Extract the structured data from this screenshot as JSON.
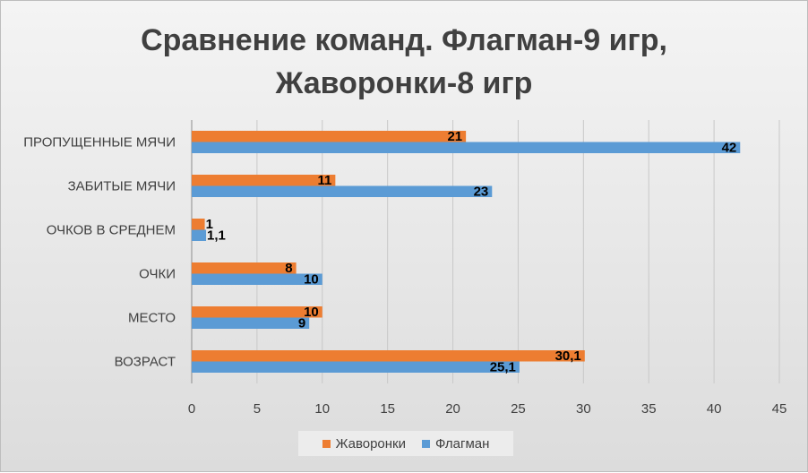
{
  "chart_data": {
    "type": "bar",
    "orientation": "horizontal",
    "title_lines": [
      "Сравнение команд. Флагман-9 игр,",
      "Жаворонки-8 игр"
    ],
    "categories": [
      "ПРОПУЩЕННЫЕ МЯЧИ",
      "ЗАБИТЫЕ МЯЧИ",
      "ОЧКОВ В СРЕДНЕМ",
      "ОЧКИ",
      "МЕСТО",
      "ВОЗРАСТ"
    ],
    "series": [
      {
        "name": "Жаворонки",
        "color": "#ed7d31",
        "values": [
          21,
          11,
          1,
          8,
          10,
          30.1
        ],
        "labels": [
          "21",
          "11",
          "1",
          "8",
          "10",
          "30,1"
        ]
      },
      {
        "name": "Флагман",
        "color": "#5b9bd5",
        "values": [
          42,
          23,
          1.1,
          10,
          9,
          25.1
        ],
        "labels": [
          "42",
          "23",
          "1,1",
          "10",
          "9",
          "25,1"
        ]
      }
    ],
    "xlim": [
      0,
      45
    ],
    "xticks": [
      0,
      5,
      10,
      15,
      20,
      25,
      30,
      35,
      40,
      45
    ],
    "grid": true,
    "legend_position": "bottom"
  }
}
